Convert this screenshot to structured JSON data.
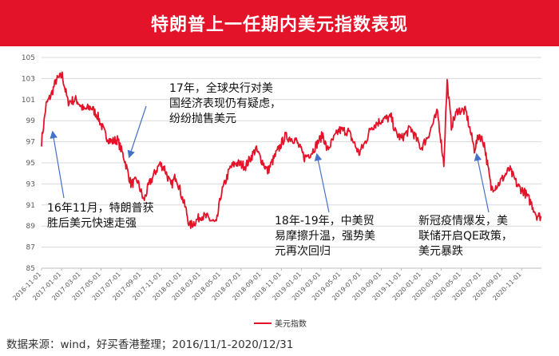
{
  "header": {
    "title": "特朗普上一任期内美元指数表现"
  },
  "source_text": "数据来源：wind，好买香港整理；2016/11/1-2020/12/31",
  "annotations": [
    {
      "id": "a1",
      "text": "16年11月，特朗普获\n胜后美元快速走强"
    },
    {
      "id": "a2",
      "text": "17年，全球央行对美\n国经济表现仍有疑虑，\n纷纷抛售美元"
    },
    {
      "id": "a3",
      "text": "18年-19年，中美贸\n易摩擦升温，强势美\n元再次回归"
    },
    {
      "id": "a4",
      "text": "新冠疫情爆发，美\n联储开启QE政策，\n美元暴跌"
    }
  ],
  "chart_data": {
    "type": "line",
    "title": "特朗普上一任期内美元指数表现",
    "xlabel": "",
    "ylabel": "",
    "ylim": [
      85,
      105
    ],
    "yticks": [
      85,
      87,
      89,
      91,
      93,
      95,
      97,
      99,
      101,
      103,
      105
    ],
    "xticks": [
      "2016-11-01",
      "2017-01-01",
      "2017-03-01",
      "2017-05-01",
      "2017-07-01",
      "2017-09-01",
      "2017-11-01",
      "2018-01-01",
      "2018-03-01",
      "2018-05-01",
      "2018-07-01",
      "2018-09-01",
      "2018-11-01",
      "2019-01-01",
      "2019-03-01",
      "2019-05-01",
      "2019-07-01",
      "2019-09-01",
      "2019-11-01",
      "2020-01-01",
      "2020-03-01",
      "2020-05-01",
      "2020-07-01",
      "2020-09-01",
      "2020-11-01"
    ],
    "grid": true,
    "legend": "bottom",
    "color": "#e3132a",
    "series": [
      {
        "name": "美元指数",
        "x": [
          "2016-11-01",
          "2016-11-15",
          "2016-12-01",
          "2016-12-15",
          "2017-01-03",
          "2017-01-20",
          "2017-02-15",
          "2017-03-10",
          "2017-03-31",
          "2017-04-20",
          "2017-05-15",
          "2017-06-01",
          "2017-06-20",
          "2017-07-10",
          "2017-07-31",
          "2017-08-20",
          "2017-09-08",
          "2017-09-25",
          "2017-10-26",
          "2017-11-10",
          "2017-11-30",
          "2017-12-15",
          "2018-01-02",
          "2018-01-15",
          "2018-01-25",
          "2018-02-15",
          "2018-03-01",
          "2018-03-20",
          "2018-04-17",
          "2018-05-01",
          "2018-05-29",
          "2018-06-15",
          "2018-07-15",
          "2018-08-15",
          "2018-09-20",
          "2018-10-15",
          "2018-11-12",
          "2018-12-14",
          "2019-01-10",
          "2019-02-01",
          "2019-03-07",
          "2019-03-20",
          "2019-04-25",
          "2019-05-23",
          "2019-06-25",
          "2019-07-15",
          "2019-08-01",
          "2019-09-03",
          "2019-10-01",
          "2019-10-15",
          "2019-11-01",
          "2019-11-29",
          "2019-12-31",
          "2020-01-20",
          "2020-02-19",
          "2020-03-09",
          "2020-03-19",
          "2020-04-01",
          "2020-04-20",
          "2020-05-15",
          "2020-06-10",
          "2020-06-25",
          "2020-07-10",
          "2020-07-31",
          "2020-08-20",
          "2020-09-25",
          "2020-10-20",
          "2020-11-10",
          "2020-12-01",
          "2020-12-17",
          "2020-12-31"
        ],
        "values": [
          97.0,
          100.5,
          101.5,
          102.8,
          103.3,
          100.8,
          101.0,
          100.0,
          100.3,
          99.5,
          97.6,
          97.0,
          97.2,
          95.5,
          93.0,
          93.3,
          91.4,
          93.0,
          94.9,
          94.5,
          92.8,
          93.8,
          91.8,
          90.5,
          89.0,
          89.5,
          90.0,
          89.8,
          89.2,
          92.0,
          94.5,
          95.0,
          94.7,
          96.3,
          94.2,
          95.8,
          97.5,
          97.2,
          95.5,
          96.0,
          97.7,
          96.2,
          98.1,
          98.0,
          95.9,
          97.0,
          98.4,
          99.1,
          99.3,
          97.8,
          97.3,
          98.3,
          96.4,
          97.5,
          99.8,
          94.9,
          102.8,
          98.5,
          100.0,
          99.9,
          96.3,
          97.7,
          96.8,
          92.6,
          92.9,
          94.4,
          92.8,
          92.2,
          91.1,
          90.0,
          89.9
        ]
      }
    ]
  }
}
